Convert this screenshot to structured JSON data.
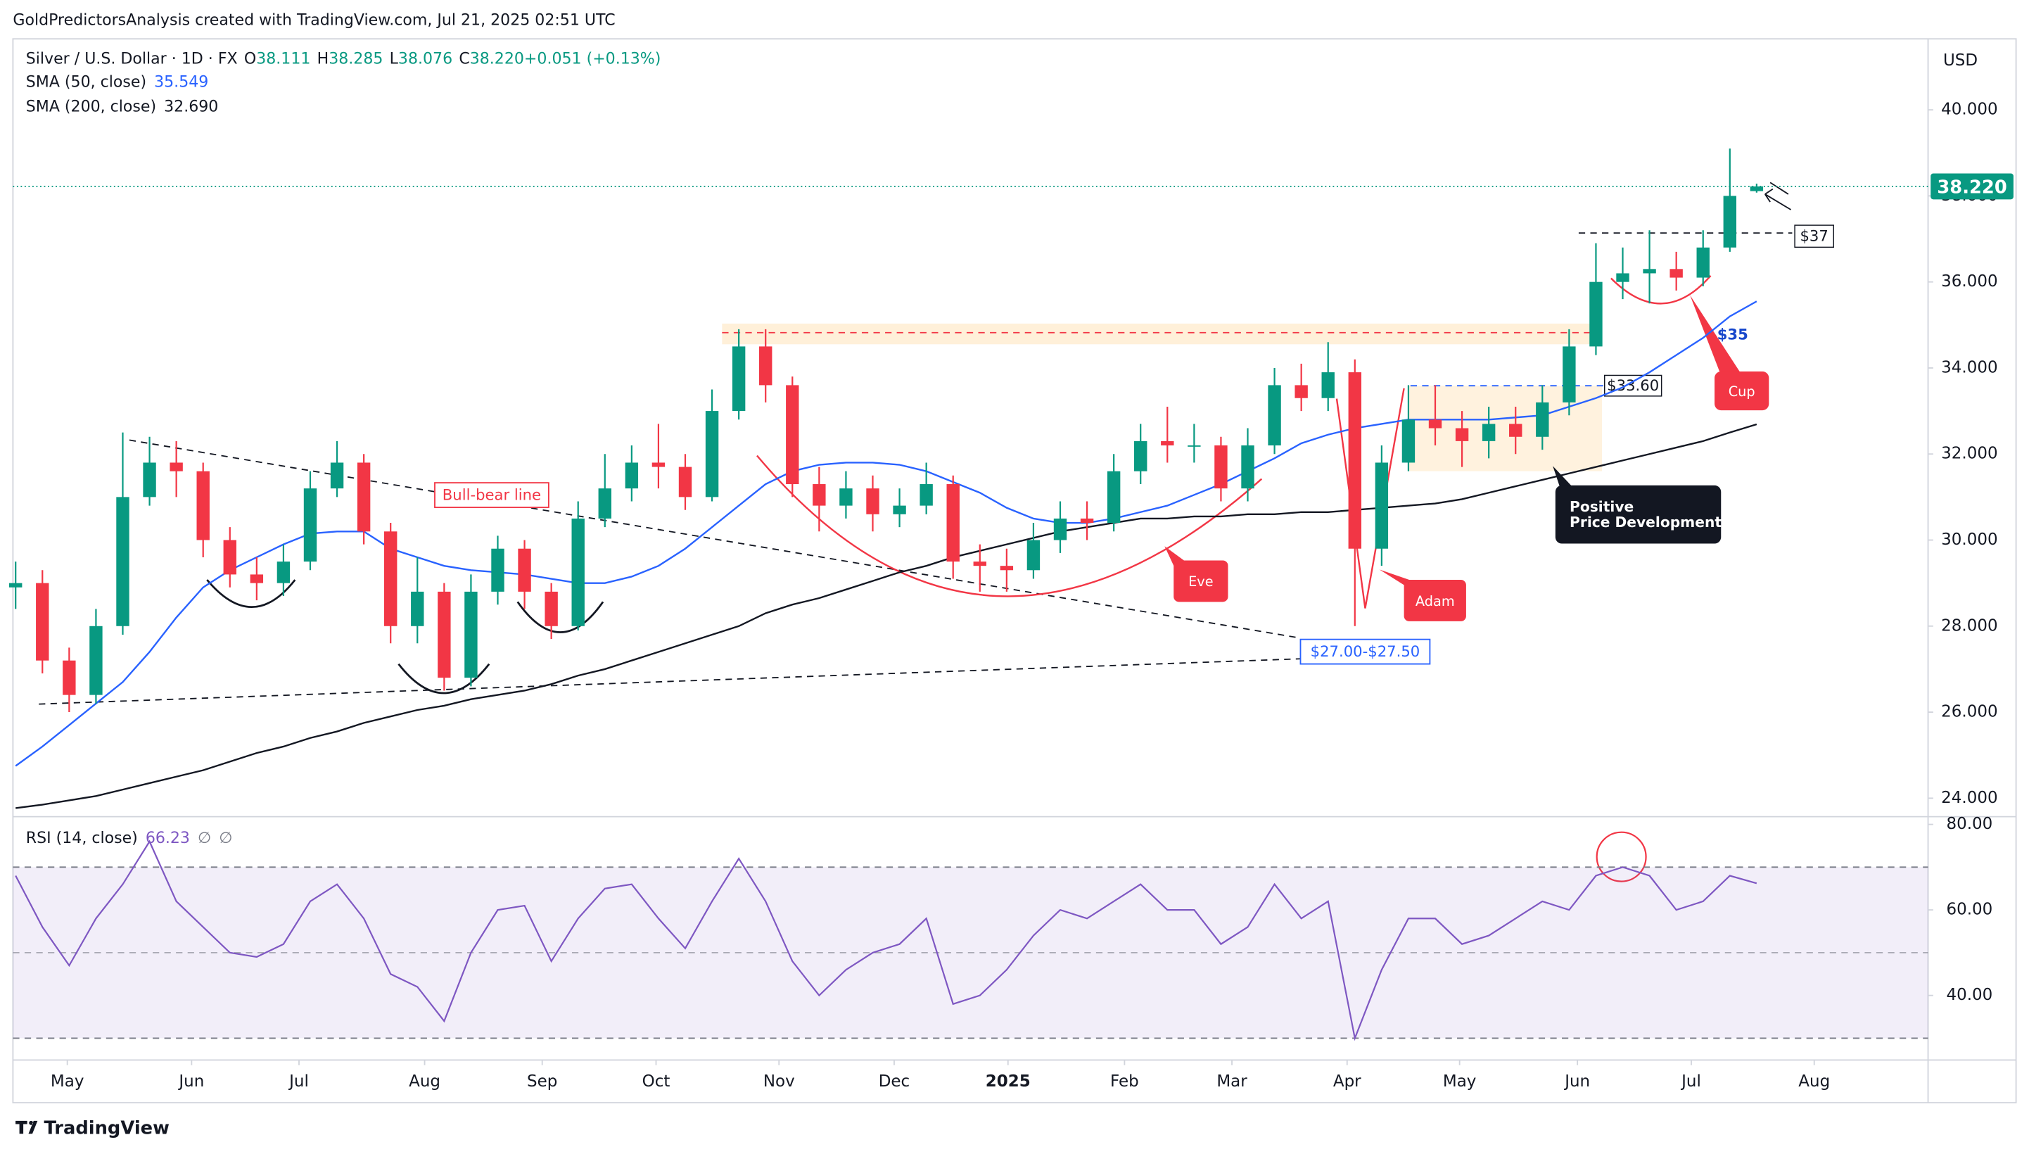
{
  "header": {
    "attribution": "GoldPredictorsAnalysis created with TradingView.com, Jul 21, 2025 02:51 UTC",
    "currency": "USD"
  },
  "footer": {
    "brand": "TradingView"
  },
  "chart_data": [
    {
      "type": "candlestick",
      "title": "Silver / U.S. Dollar · 1D · FX",
      "legend_values": [
        "O",
        "38.111",
        "H",
        "38.285",
        "L",
        "38.076",
        "C",
        "38.220",
        "+0.051 (+0.13%)"
      ],
      "up_color": "#089981",
      "down_color": "#f23645",
      "x": [
        0,
        1,
        2,
        3,
        4,
        5,
        6,
        7,
        8,
        9,
        10,
        11,
        12,
        13,
        14,
        15,
        16,
        17,
        18,
        19,
        20,
        21,
        22,
        23,
        24,
        25,
        26,
        27,
        28,
        29,
        30,
        31,
        32,
        33,
        34,
        35,
        36,
        37,
        38,
        39,
        40,
        41,
        42,
        43,
        44,
        45,
        46,
        47,
        48,
        49,
        50,
        51,
        52,
        53,
        54,
        55,
        56,
        57,
        58,
        59,
        60,
        61,
        62,
        63,
        64,
        65
      ],
      "open": [
        28.9,
        29.0,
        27.2,
        26.4,
        28.0,
        31.0,
        31.8,
        31.6,
        30.0,
        29.2,
        29.0,
        29.5,
        31.2,
        31.8,
        30.2,
        28.0,
        28.8,
        26.8,
        28.8,
        29.8,
        28.8,
        28.0,
        30.5,
        31.2,
        31.8,
        31.7,
        31.0,
        33.0,
        34.5,
        33.6,
        31.3,
        30.8,
        31.2,
        30.6,
        30.8,
        31.3,
        29.5,
        29.4,
        29.3,
        30.0,
        30.5,
        30.4,
        31.6,
        32.3,
        32.2,
        32.2,
        31.2,
        32.2,
        33.6,
        33.3,
        33.9,
        29.8,
        31.8,
        32.8,
        32.6,
        32.3,
        32.7,
        32.4,
        33.2,
        34.5,
        36.0,
        36.2,
        36.3,
        36.1,
        36.8,
        38.111
      ],
      "high": [
        29.5,
        29.3,
        27.5,
        28.4,
        32.5,
        32.4,
        32.3,
        31.8,
        30.3,
        29.6,
        29.9,
        31.6,
        32.3,
        32.0,
        30.4,
        29.6,
        29.0,
        29.2,
        30.1,
        30.0,
        29.0,
        30.9,
        32.0,
        32.2,
        32.7,
        32.0,
        33.5,
        34.9,
        34.9,
        33.8,
        31.7,
        31.6,
        31.5,
        31.2,
        31.8,
        31.5,
        29.9,
        29.8,
        30.4,
        30.9,
        30.9,
        32.0,
        32.7,
        33.1,
        32.7,
        32.4,
        32.6,
        34.0,
        34.1,
        34.6,
        34.2,
        32.2,
        33.6,
        33.6,
        33.0,
        33.1,
        33.1,
        33.6,
        34.9,
        36.9,
        36.8,
        37.2,
        36.7,
        37.2,
        39.1,
        38.285
      ],
      "low": [
        28.4,
        26.9,
        26.0,
        26.2,
        27.8,
        30.8,
        31.0,
        29.6,
        28.9,
        28.6,
        28.7,
        29.3,
        31.0,
        29.9,
        27.6,
        27.6,
        26.5,
        26.6,
        28.5,
        28.4,
        27.7,
        27.9,
        30.3,
        30.9,
        31.2,
        30.7,
        30.9,
        32.8,
        33.2,
        31.0,
        30.2,
        30.5,
        30.2,
        30.3,
        30.6,
        29.1,
        28.8,
        28.8,
        29.1,
        29.7,
        30.0,
        30.2,
        31.3,
        31.8,
        31.8,
        30.9,
        30.9,
        32.0,
        33.0,
        33.0,
        28.0,
        29.4,
        31.6,
        32.2,
        31.7,
        31.9,
        32.0,
        32.1,
        32.9,
        34.3,
        35.6,
        35.5,
        35.8,
        35.9,
        36.7,
        38.076
      ],
      "close": [
        29.0,
        27.2,
        26.4,
        28.0,
        31.0,
        31.8,
        31.6,
        30.0,
        29.2,
        29.0,
        29.5,
        31.2,
        31.8,
        30.2,
        28.0,
        28.8,
        26.8,
        28.8,
        29.8,
        28.8,
        28.0,
        30.5,
        31.2,
        31.8,
        31.7,
        31.0,
        33.0,
        34.5,
        33.6,
        31.3,
        30.8,
        31.2,
        30.6,
        30.8,
        31.3,
        29.5,
        29.4,
        29.3,
        30.0,
        30.5,
        30.4,
        31.6,
        32.3,
        32.2,
        32.2,
        31.2,
        32.2,
        33.6,
        33.3,
        33.9,
        29.8,
        31.8,
        32.8,
        32.6,
        32.3,
        32.7,
        32.4,
        33.2,
        34.5,
        36.0,
        36.2,
        36.3,
        36.1,
        36.8,
        38.0,
        38.22
      ],
      "series": [
        {
          "name": "SMA (50, close)",
          "color": "#2962ff",
          "last_label": "35.549",
          "values": [
            24.75,
            25.2,
            25.7,
            26.2,
            26.7,
            27.4,
            28.2,
            28.9,
            29.3,
            29.6,
            29.9,
            30.15,
            30.2,
            30.2,
            29.8,
            29.6,
            29.4,
            29.3,
            29.25,
            29.2,
            29.1,
            29.0,
            29.0,
            29.15,
            29.4,
            29.8,
            30.3,
            30.8,
            31.3,
            31.6,
            31.75,
            31.8,
            31.8,
            31.75,
            31.6,
            31.35,
            31.1,
            30.75,
            30.5,
            30.4,
            30.4,
            30.5,
            30.65,
            30.8,
            31.05,
            31.3,
            31.6,
            31.9,
            32.25,
            32.45,
            32.6,
            32.7,
            32.8,
            32.8,
            32.8,
            32.8,
            32.85,
            32.9,
            33.1,
            33.3,
            33.55,
            33.9,
            34.3,
            34.7,
            35.2,
            35.549
          ]
        },
        {
          "name": "SMA (200, close)",
          "color": "#131722",
          "last_label": "32.690",
          "values": [
            23.77,
            23.85,
            23.95,
            24.05,
            24.2,
            24.35,
            24.5,
            24.65,
            24.85,
            25.05,
            25.2,
            25.4,
            25.55,
            25.75,
            25.9,
            26.05,
            26.15,
            26.3,
            26.4,
            26.5,
            26.65,
            26.85,
            27.0,
            27.2,
            27.4,
            27.6,
            27.8,
            28.0,
            28.3,
            28.5,
            28.65,
            28.85,
            29.05,
            29.25,
            29.4,
            29.6,
            29.75,
            29.9,
            30.05,
            30.2,
            30.3,
            30.4,
            30.5,
            30.5,
            30.55,
            30.55,
            30.6,
            30.6,
            30.65,
            30.65,
            30.7,
            30.75,
            30.8,
            30.85,
            30.95,
            31.1,
            31.25,
            31.4,
            31.55,
            31.7,
            31.85,
            32.0,
            32.15,
            32.3,
            32.5,
            32.69
          ]
        }
      ],
      "xlim": [
        -0.1,
        71.4
      ],
      "ylim": [
        23.6,
        41.65
      ],
      "yticks": [
        {
          "value": 24,
          "label": "24.000"
        },
        {
          "value": 26,
          "label": "26.000"
        },
        {
          "value": 28,
          "label": "28.000"
        },
        {
          "value": 30,
          "label": "30.000"
        },
        {
          "value": 32,
          "label": "32.000"
        },
        {
          "value": 34,
          "label": "34.000"
        },
        {
          "value": 36,
          "label": "36.000"
        },
        {
          "value": 38,
          "label": "38.000"
        },
        {
          "value": 40,
          "label": "40.000"
        }
      ],
      "grid": false,
      "last_price": {
        "value": 38.22,
        "label": "38.220",
        "color": "#089981"
      },
      "annotations": {
        "bull_bear": "Bull-bear line",
        "support": "$27.00-$27.50",
        "eve": "Eve",
        "adam": "Adam",
        "positive": [
          "Positive",
          "Price Development"
        ],
        "cup": "Cup",
        "level_35": "$35",
        "level_3360": "$33.60",
        "level_37": "$37"
      }
    },
    {
      "type": "line",
      "title": "RSI (14, close)",
      "legend_values": [
        "66.23",
        "∅",
        "∅"
      ],
      "color": "#7e57c2",
      "x": [
        0,
        1,
        2,
        3,
        4,
        5,
        6,
        7,
        8,
        9,
        10,
        11,
        12,
        13,
        14,
        15,
        16,
        17,
        18,
        19,
        20,
        21,
        22,
        23,
        24,
        25,
        26,
        27,
        28,
        29,
        30,
        31,
        32,
        33,
        34,
        35,
        36,
        37,
        38,
        39,
        40,
        41,
        42,
        43,
        44,
        45,
        46,
        47,
        48,
        49,
        50,
        51,
        52,
        53,
        54,
        55,
        56,
        57,
        58,
        59,
        60,
        61,
        62,
        63,
        64,
        65
      ],
      "values": [
        68,
        56,
        47,
        58,
        66,
        76,
        62,
        56,
        50,
        49,
        52,
        62,
        66,
        58,
        45,
        42,
        34,
        50,
        60,
        61,
        48,
        58,
        65,
        66,
        58,
        51,
        62,
        72,
        62,
        48,
        40,
        46,
        50,
        52,
        58,
        38,
        40,
        46,
        54,
        60,
        58,
        62,
        66,
        60,
        60,
        52,
        56,
        66,
        58,
        62,
        30,
        46,
        58,
        58,
        52,
        54,
        58,
        62,
        60,
        68,
        70,
        68,
        60,
        62,
        68,
        66.23
      ],
      "xlim": [
        -0.1,
        71.4
      ],
      "ylim": [
        25.2,
        81.5
      ],
      "yticks": [
        {
          "value": 40,
          "label": "40.00"
        },
        {
          "value": 60,
          "label": "60.00"
        },
        {
          "value": 80,
          "label": "80.00"
        }
      ],
      "bands": [
        30,
        70
      ],
      "midline": 50,
      "xticks": [
        {
          "value": 1.93,
          "label": "May"
        },
        {
          "value": 6.57,
          "label": "Jun"
        },
        {
          "value": 10.58,
          "label": "Jul"
        },
        {
          "value": 15.27,
          "label": "Aug"
        },
        {
          "value": 19.66,
          "label": "Sep"
        },
        {
          "value": 23.91,
          "label": "Oct"
        },
        {
          "value": 28.5,
          "label": "Nov"
        },
        {
          "value": 32.8,
          "label": "Dec"
        },
        {
          "value": 37.05,
          "label": "2025"
        },
        {
          "value": 41.4,
          "label": "Feb"
        },
        {
          "value": 45.41,
          "label": "Mar"
        },
        {
          "value": 49.71,
          "label": "Apr"
        },
        {
          "value": 53.91,
          "label": "May"
        },
        {
          "value": 58.31,
          "label": "Jun"
        },
        {
          "value": 62.56,
          "label": "Jul"
        },
        {
          "value": 67.15,
          "label": "Aug"
        }
      ]
    }
  ]
}
